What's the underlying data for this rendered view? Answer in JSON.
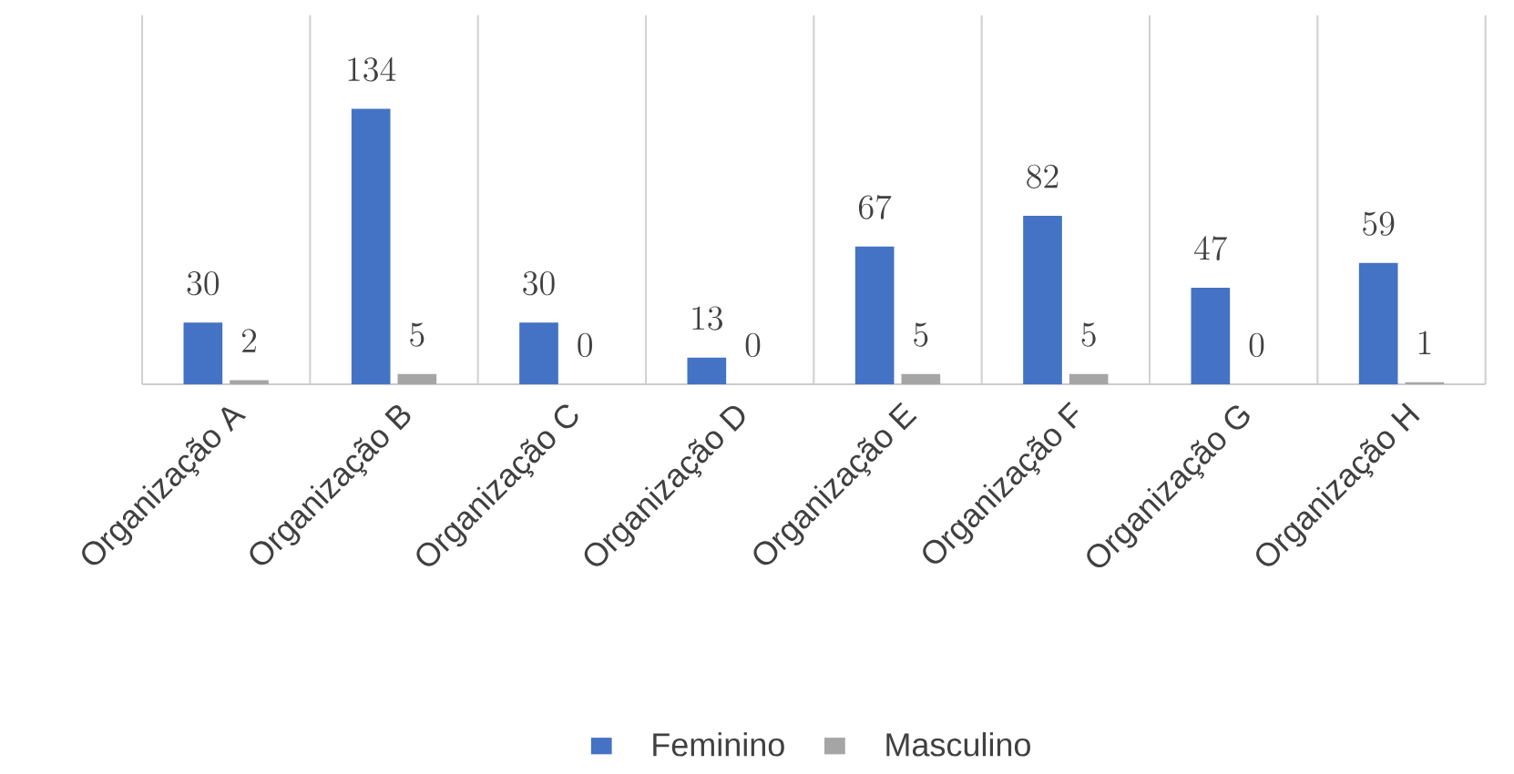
{
  "chart_data": {
    "type": "bar",
    "categories": [
      "Organização A",
      "Organização B",
      "Organização C",
      "Organização D",
      "Organização E",
      "Organização F",
      "Organização G",
      "Organização H"
    ],
    "series": [
      {
        "name": "Feminino",
        "color": "#4472c4",
        "values": [
          30,
          134,
          30,
          13,
          67,
          82,
          47,
          59
        ]
      },
      {
        "name": "Masculino",
        "color": "#a5a5a5",
        "values": [
          2,
          5,
          0,
          0,
          5,
          5,
          0,
          1
        ]
      }
    ],
    "data_labels": true,
    "grid": "x",
    "legend": "bottom"
  }
}
